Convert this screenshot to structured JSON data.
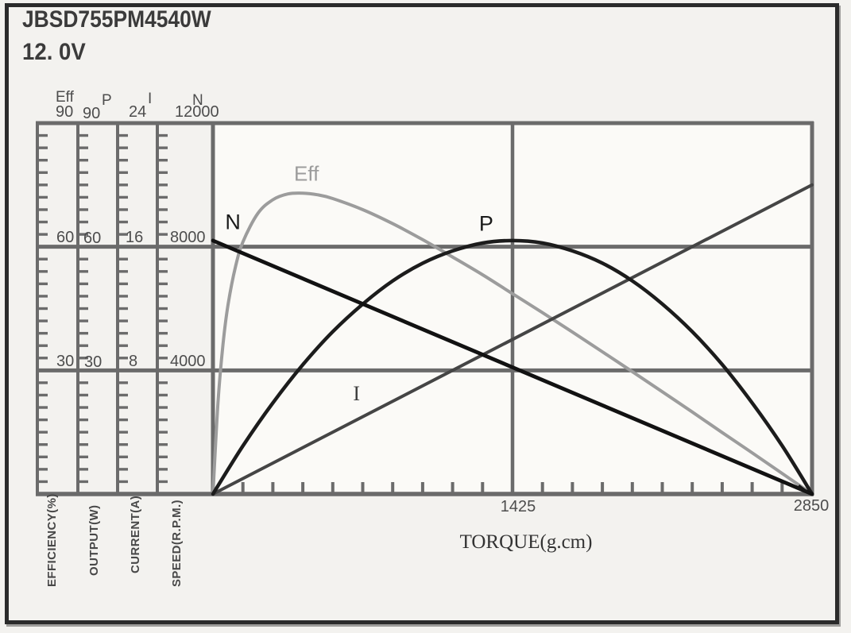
{
  "header": {
    "model": "JBSD755PM4540W",
    "voltage": "12. 0V"
  },
  "y_axes": [
    {
      "id": "efficiency",
      "curve": "Eff",
      "unit": "EFFICIENCY(%)",
      "values": [
        "90",
        "60",
        "30"
      ]
    },
    {
      "id": "output",
      "curve": "P",
      "unit": "OUTPUT(W)",
      "values": [
        "90",
        "60",
        "30"
      ]
    },
    {
      "id": "current",
      "curve": "I",
      "unit": "CURRENT(A)",
      "values": [
        "24",
        "16",
        "8"
      ]
    },
    {
      "id": "speed",
      "curve": "N",
      "unit": "SPEED(R.P.M.)",
      "values": [
        "12000",
        "8000",
        "4000"
      ]
    }
  ],
  "x_axis": {
    "label": "TORQUE(g.cm)",
    "tick_labels": [
      "1425",
      "2850"
    ]
  },
  "colors": {
    "grid": "#6b6b6b",
    "text": "#4d4d4d",
    "frame": "#2b2b2b",
    "plot_background": "#fbfaf7"
  },
  "chart_data": {
    "type": "line",
    "title": "JBSD755PM4540W 12. 0V performance curves",
    "xlabel": "TORQUE(g.cm)",
    "x_range": [
      0,
      2850
    ],
    "x_tick_values": [
      1425,
      2850
    ],
    "x_minor_tick_step": 142.5,
    "grid": "vertical major line at 1425; horizontal major lines at 1/3 and 2/3 of axis height; minor tick rulers on all axes",
    "legend_position": "inline curve labels",
    "series": [
      {
        "name": "Eff",
        "axis": "EFFICIENCY(%)",
        "axis_max": 90,
        "axis_ticks": [
          90,
          60,
          30
        ],
        "color": "#9c9c9c",
        "width": 4,
        "points": [
          [
            0,
            0
          ],
          [
            24,
            22.1
          ],
          [
            48,
            36.4
          ],
          [
            71,
            45.7
          ],
          [
            107,
            55.1
          ],
          [
            143,
            61.2
          ],
          [
            214,
            68.1
          ],
          [
            285,
            71.4
          ],
          [
            356,
            72.8
          ],
          [
            428,
            73.0
          ],
          [
            499,
            72.6
          ],
          [
            570,
            71.7
          ],
          [
            713,
            69.0
          ],
          [
            855,
            65.6
          ],
          [
            998,
            61.7
          ],
          [
            1140,
            57.5
          ],
          [
            1283,
            53.2
          ],
          [
            1425,
            48.6
          ],
          [
            1568,
            44.0
          ],
          [
            1710,
            39.3
          ],
          [
            1853,
            34.5
          ],
          [
            1995,
            29.7
          ],
          [
            2138,
            24.8
          ],
          [
            2280,
            19.9
          ],
          [
            2423,
            14.9
          ],
          [
            2565,
            10.0
          ],
          [
            2708,
            5.0
          ],
          [
            2850,
            0
          ]
        ]
      },
      {
        "name": "I",
        "axis": "CURRENT(A)",
        "axis_max": 24,
        "axis_ticks": [
          24,
          16,
          8
        ],
        "color": "#454545",
        "width": 4,
        "points": [
          [
            0,
            0
          ],
          [
            2850,
            20
          ]
        ]
      },
      {
        "name": "P",
        "axis": "OUTPUT(W)",
        "axis_max": 90,
        "axis_ticks": [
          90,
          60,
          30
        ],
        "color": "#1c1c1c",
        "width": 4.5,
        "points": [
          [
            0,
            0
          ],
          [
            143,
            11.7
          ],
          [
            285,
            22.1
          ],
          [
            428,
            31.4
          ],
          [
            570,
            39.4
          ],
          [
            713,
            46.1
          ],
          [
            855,
            51.7
          ],
          [
            998,
            56.0
          ],
          [
            1140,
            59.0
          ],
          [
            1283,
            60.9
          ],
          [
            1425,
            61.5
          ],
          [
            1568,
            60.9
          ],
          [
            1710,
            59.0
          ],
          [
            1853,
            56.0
          ],
          [
            1995,
            51.7
          ],
          [
            2138,
            46.1
          ],
          [
            2280,
            39.4
          ],
          [
            2423,
            31.4
          ],
          [
            2565,
            22.1
          ],
          [
            2708,
            11.7
          ],
          [
            2850,
            0
          ]
        ]
      },
      {
        "name": "N",
        "axis": "SPEED(R.P.M.)",
        "axis_max": 12000,
        "axis_ticks": [
          12000,
          8000,
          4000
        ],
        "color": "#121212",
        "width": 4.8,
        "points": [
          [
            0,
            8200
          ],
          [
            2850,
            0
          ]
        ]
      }
    ],
    "curve_labels": [
      {
        "series": "N",
        "text": "N",
        "t": 95,
        "v": 8800
      },
      {
        "series": "Eff",
        "text": "Eff",
        "t": 445,
        "v": 77.6
      },
      {
        "series": "P",
        "text": "P",
        "t": 1300,
        "v": 65.5
      },
      {
        "series": "I",
        "text": "I",
        "t": 683,
        "v": 6.45
      }
    ]
  }
}
